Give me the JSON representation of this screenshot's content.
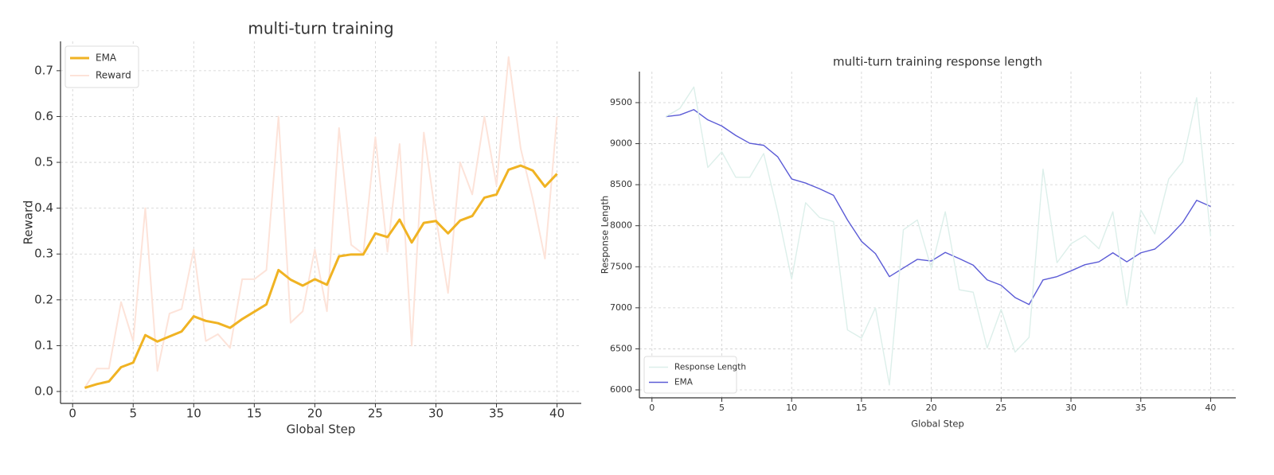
{
  "chart_data": [
    {
      "type": "line",
      "title": "multi-turn training",
      "x_label": "Global Step",
      "y_label": "Reward",
      "x": [
        1,
        2,
        3,
        4,
        5,
        6,
        7,
        8,
        9,
        10,
        11,
        12,
        13,
        14,
        15,
        16,
        17,
        18,
        19,
        20,
        21,
        22,
        23,
        24,
        25,
        26,
        27,
        28,
        29,
        30,
        31,
        32,
        33,
        34,
        35,
        36,
        37,
        38,
        39,
        40
      ],
      "series": [
        {
          "name": "EMA",
          "color": "#f0b323",
          "values": [
            0.008,
            0.016,
            0.022,
            0.053,
            0.063,
            0.123,
            0.109,
            0.12,
            0.131,
            0.164,
            0.154,
            0.149,
            0.139,
            0.158,
            0.174,
            0.19,
            0.265,
            0.244,
            0.231,
            0.245,
            0.233,
            0.295,
            0.299,
            0.299,
            0.345,
            0.337,
            0.375,
            0.325,
            0.368,
            0.372,
            0.345,
            0.373,
            0.383,
            0.423,
            0.43,
            0.484,
            0.493,
            0.482,
            0.447,
            0.475
          ]
        },
        {
          "name": "Reward",
          "color": "#fde3d9",
          "values": [
            0.008,
            0.05,
            0.05,
            0.195,
            0.11,
            0.4,
            0.045,
            0.17,
            0.18,
            0.31,
            0.11,
            0.125,
            0.095,
            0.245,
            0.245,
            0.265,
            0.6,
            0.15,
            0.175,
            0.31,
            0.175,
            0.575,
            0.32,
            0.3,
            0.555,
            0.305,
            0.54,
            0.1,
            0.565,
            0.38,
            0.215,
            0.5,
            0.43,
            0.6,
            0.45,
            0.73,
            0.53,
            0.42,
            0.29,
            0.6
          ]
        }
      ],
      "xlim": [
        -1,
        42
      ],
      "xticks": [
        0,
        5,
        10,
        15,
        20,
        25,
        30,
        35,
        40
      ],
      "ylim": [
        -0.026,
        0.764
      ],
      "yticks": [
        {
          "value": 0,
          "label": "0.0"
        },
        0.1,
        0.2,
        0.3,
        0.4,
        0.5,
        0.6,
        0.7
      ],
      "grid": true,
      "legend": "upper left"
    },
    {
      "type": "line",
      "title": "multi-turn training response length",
      "x_label": "Global Step",
      "y_label": "Response Length",
      "x": [
        1,
        2,
        3,
        4,
        5,
        6,
        7,
        8,
        9,
        10,
        11,
        12,
        13,
        14,
        15,
        16,
        17,
        18,
        19,
        20,
        21,
        22,
        23,
        24,
        25,
        26,
        27,
        28,
        29,
        30,
        31,
        32,
        33,
        34,
        35,
        36,
        37,
        38,
        39,
        40
      ],
      "series": [
        {
          "name": "Response Length",
          "color": "#dcefea",
          "values": [
            9330,
            9430,
            9690,
            8710,
            8900,
            8590,
            8590,
            8880,
            8170,
            7350,
            8280,
            8100,
            8050,
            6730,
            6630,
            7000,
            6060,
            7950,
            8070,
            7480,
            8170,
            7220,
            7190,
            6510,
            6980,
            6460,
            6640,
            8690,
            7550,
            7780,
            7880,
            7720,
            8170,
            7030,
            8190,
            7900,
            8570,
            8780,
            9560,
            7870
          ]
        },
        {
          "name": "EMA",
          "color": "#5b5bd6",
          "values": [
            9330,
            9350,
            9415,
            9290,
            9215,
            9100,
            9005,
            8980,
            8840,
            8570,
            8520,
            8450,
            8370,
            8070,
            7810,
            7660,
            7380,
            7485,
            7590,
            7570,
            7675,
            7600,
            7520,
            7340,
            7275,
            7125,
            7040,
            7340,
            7380,
            7450,
            7525,
            7560,
            7670,
            7560,
            7670,
            7715,
            7860,
            8040,
            8310,
            8235
          ]
        }
      ],
      "xlim": [
        -0.9,
        41.8
      ],
      "xticks": [
        0,
        5,
        10,
        15,
        20,
        25,
        30,
        35,
        40
      ],
      "ylim": [
        5903,
        9878
      ],
      "yticks": [
        6000,
        6500,
        7000,
        7500,
        8000,
        8500,
        9000,
        9500
      ],
      "grid": true,
      "legend": "lower left"
    }
  ]
}
